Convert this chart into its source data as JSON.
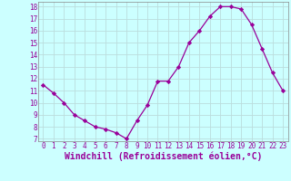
{
  "x": [
    0,
    1,
    2,
    3,
    4,
    5,
    6,
    7,
    8,
    9,
    10,
    11,
    12,
    13,
    14,
    15,
    16,
    17,
    18,
    19,
    20,
    21,
    22,
    23
  ],
  "y": [
    11.5,
    10.8,
    10.0,
    9.0,
    8.5,
    8.0,
    7.8,
    7.5,
    7.0,
    8.5,
    9.8,
    11.8,
    11.8,
    13.0,
    15.0,
    16.0,
    17.2,
    18.0,
    18.0,
    17.8,
    16.5,
    14.5,
    12.5,
    11.0
  ],
  "line_color": "#990099",
  "marker": "D",
  "marker_size": 2.2,
  "bg_color": "#ccffff",
  "grid_color": "#bbdddd",
  "xlabel": "Windchill (Refroidissement éolien,°C)",
  "xlabel_color": "#990099",
  "tick_color": "#990099",
  "xlim": [
    -0.5,
    23.5
  ],
  "ylim": [
    6.8,
    18.4
  ],
  "yticks": [
    7,
    8,
    9,
    10,
    11,
    12,
    13,
    14,
    15,
    16,
    17,
    18
  ],
  "xticks": [
    0,
    1,
    2,
    3,
    4,
    5,
    6,
    7,
    8,
    9,
    10,
    11,
    12,
    13,
    14,
    15,
    16,
    17,
    18,
    19,
    20,
    21,
    22,
    23
  ],
  "tick_fontsize": 5.5,
  "xlabel_fontsize": 7.0
}
